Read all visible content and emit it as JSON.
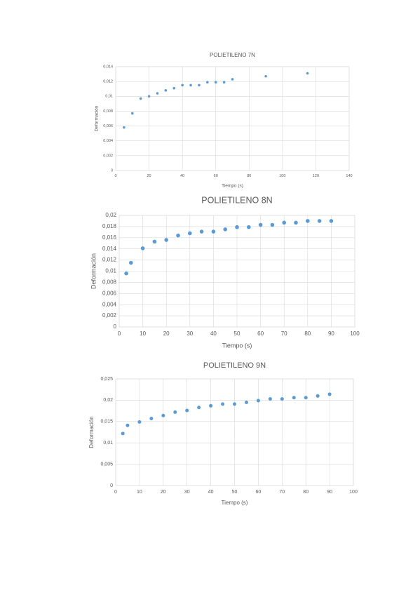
{
  "chart_data": [
    {
      "type": "scatter",
      "title": "POLIETILENO 7N",
      "x_label": "Tiempo (s)",
      "y_label": "Deformación",
      "color": "#5b9bd5",
      "grid": true,
      "x": [
        5,
        10,
        15,
        20,
        25,
        30,
        35,
        40,
        45,
        50,
        55,
        60,
        65,
        70,
        90,
        115
      ],
      "values": [
        0.0058,
        0.0077,
        0.0097,
        0.01,
        0.0104,
        0.0108,
        0.0111,
        0.0115,
        0.0115,
        0.0115,
        0.0119,
        0.0119,
        0.0119,
        0.0123,
        0.0127,
        0.0131
      ],
      "xlim": [
        0,
        140
      ],
      "xticks": [
        0,
        20,
        40,
        60,
        80,
        100,
        120,
        140
      ],
      "ylim": [
        0,
        0.014
      ],
      "yticks": [
        0,
        {
          "value": 0.002,
          "label": "0,002"
        },
        {
          "value": 0.004,
          "label": "0,004"
        },
        {
          "value": 0.006,
          "label": "0,006"
        },
        {
          "value": 0.008,
          "label": "0,008"
        },
        {
          "value": 0.01,
          "label": "0,01"
        },
        {
          "value": 0.012,
          "label": "0,012"
        },
        {
          "value": 0.014,
          "label": "0,014"
        }
      ]
    },
    {
      "type": "scatter",
      "title": "POLIETILENO 8N",
      "x_label": "Tiempo (s)",
      "y_label": "Deformación",
      "color": "#5b9bd5",
      "grid": true,
      "x": [
        3,
        5,
        10,
        15,
        20,
        25,
        30,
        35,
        40,
        45,
        50,
        55,
        60,
        65,
        70,
        75,
        80,
        85,
        90
      ],
      "values": [
        0.0096,
        0.0115,
        0.0141,
        0.0153,
        0.0156,
        0.0164,
        0.0168,
        0.0171,
        0.0171,
        0.0175,
        0.0179,
        0.0179,
        0.0183,
        0.0183,
        0.0187,
        0.0187,
        0.019,
        0.019,
        0.019
      ],
      "xlim": [
        0,
        100
      ],
      "xticks": [
        0,
        10,
        20,
        30,
        40,
        50,
        60,
        70,
        80,
        90,
        100
      ],
      "ylim": [
        0,
        0.02
      ],
      "yticks": [
        0,
        {
          "value": 0.002,
          "label": "0,002"
        },
        {
          "value": 0.004,
          "label": "0,004"
        },
        {
          "value": 0.006,
          "label": "0,006"
        },
        {
          "value": 0.008,
          "label": "0,008"
        },
        {
          "value": 0.01,
          "label": "0,01"
        },
        {
          "value": 0.012,
          "label": "0,012"
        },
        {
          "value": 0.014,
          "label": "0,014"
        },
        {
          "value": 0.016,
          "label": "0,016"
        },
        {
          "value": 0.018,
          "label": "0,018"
        },
        {
          "value": 0.02,
          "label": "0,02"
        }
      ]
    },
    {
      "type": "scatter",
      "title": "POLIETILENO 9N",
      "x_label": "Tiempo (s)",
      "y_label": "Deformación",
      "color": "#5b9bd5",
      "grid": true,
      "x": [
        3,
        5,
        10,
        15,
        20,
        25,
        30,
        35,
        40,
        45,
        50,
        55,
        60,
        65,
        70,
        75,
        80,
        85,
        90
      ],
      "values": [
        0.0122,
        0.0141,
        0.0149,
        0.0157,
        0.0164,
        0.0172,
        0.0176,
        0.0183,
        0.0187,
        0.0191,
        0.0191,
        0.0195,
        0.0199,
        0.0203,
        0.0203,
        0.0206,
        0.0206,
        0.021,
        0.0214
      ],
      "xlim": [
        0,
        100
      ],
      "xticks": [
        0,
        10,
        20,
        30,
        40,
        50,
        60,
        70,
        80,
        90,
        100
      ],
      "ylim": [
        0,
        0.025
      ],
      "yticks": [
        0,
        {
          "value": 0.005,
          "label": "0,005"
        },
        {
          "value": 0.01,
          "label": "0,01"
        },
        {
          "value": 0.015,
          "label": "0,015"
        },
        {
          "value": 0.02,
          "label": "0,02"
        },
        {
          "value": 0.025,
          "label": "0,025"
        }
      ]
    }
  ]
}
